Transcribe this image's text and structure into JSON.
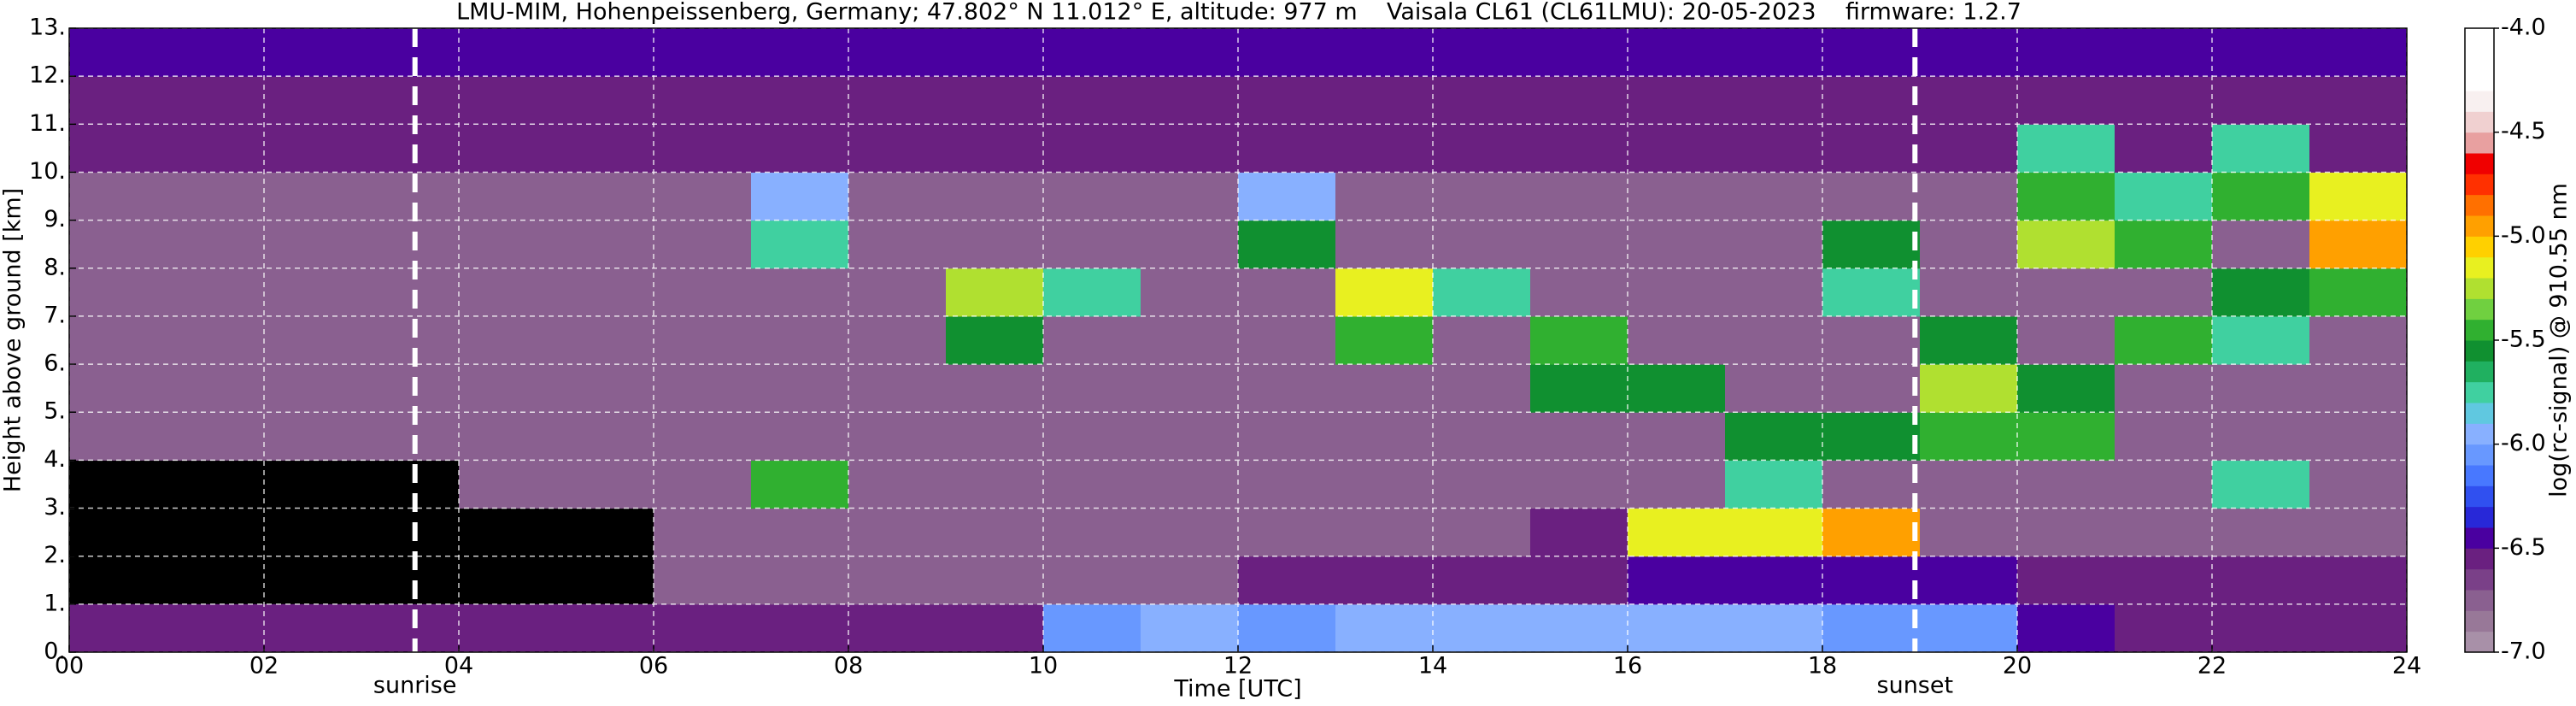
{
  "chart_data": {
    "type": "heatmap",
    "title": "LMU-MIM, Hohenpeissenberg, Germany; 47.802° N 11.012° E, altitude: 977 m    Vaisala CL61 (CL61LMU): 20-05-2023    firmware: 1.2.7",
    "x_label": "Time [UTC]",
    "y_label": "Height above ground [km]",
    "colorbar_label": "log(rc-signal) @ 910.55 nm",
    "x_edges": [
      0,
      1,
      2,
      3,
      4,
      5,
      6,
      7,
      8,
      9,
      10,
      11,
      12,
      13,
      14,
      15,
      16,
      17,
      18,
      19,
      20,
      21,
      22,
      23,
      24
    ],
    "y_edges": [
      0,
      1,
      2,
      3,
      4,
      5,
      6,
      7,
      8,
      9,
      10,
      11,
      12,
      13
    ],
    "values": [
      [
        -6.6,
        -6.6,
        -6.6,
        -6.6,
        -6.6,
        -6.6,
        -6.6,
        -6.6,
        -6.6,
        -6.6,
        -6.1,
        -6.0,
        -6.1,
        -6.0,
        -6.0,
        -6.0,
        -6.0,
        -6.0,
        -6.1,
        -6.1,
        -6.5,
        -6.6,
        -6.6,
        -6.6
      ],
      [
        null,
        null,
        null,
        null,
        null,
        null,
        -6.8,
        -6.8,
        -6.8,
        -6.8,
        -6.7,
        -6.7,
        -6.6,
        -6.6,
        -6.6,
        -6.6,
        -6.5,
        -6.5,
        -6.5,
        -6.5,
        -6.6,
        -6.6,
        -6.6,
        -6.6
      ],
      [
        null,
        null,
        null,
        null,
        null,
        null,
        -6.8,
        -6.8,
        -6.8,
        -6.8,
        -6.8,
        -6.8,
        -6.8,
        -6.8,
        -6.8,
        -6.6,
        -5.2,
        -5.2,
        -5.0,
        -6.7,
        -6.7,
        -6.7,
        -6.7,
        -6.7
      ],
      [
        null,
        null,
        null,
        null,
        -6.8,
        -6.8,
        -6.8,
        -5.5,
        -6.8,
        -6.8,
        -6.8,
        -6.8,
        -6.8,
        -6.8,
        -6.8,
        -6.8,
        -6.8,
        -5.8,
        -6.8,
        -6.8,
        -6.8,
        -6.8,
        -5.8,
        -6.8
      ],
      [
        -6.8,
        -6.8,
        -6.8,
        -6.8,
        -6.8,
        -6.8,
        -6.8,
        -6.8,
        -6.8,
        -6.8,
        -6.8,
        -6.8,
        -6.8,
        -6.8,
        -6.8,
        -6.8,
        -6.8,
        -5.6,
        -5.6,
        -5.5,
        -5.5,
        -6.8,
        -6.8,
        -6.8
      ],
      [
        -6.8,
        -6.8,
        -6.8,
        -6.8,
        -6.8,
        -6.8,
        -6.8,
        -6.8,
        -6.8,
        -6.8,
        -6.8,
        -6.8,
        -6.8,
        -6.8,
        -6.8,
        -5.6,
        -5.6,
        -6.8,
        -6.8,
        -5.3,
        -5.6,
        -6.8,
        -6.8,
        -6.8
      ],
      [
        -6.8,
        -6.8,
        -6.8,
        -6.8,
        -6.8,
        -6.8,
        -6.8,
        -6.8,
        -6.8,
        -5.6,
        -6.8,
        -6.8,
        -6.8,
        -5.4,
        -6.8,
        -5.5,
        -6.8,
        -6.8,
        -6.8,
        -5.6,
        -6.8,
        -5.5,
        -5.8,
        -6.8
      ],
      [
        -6.8,
        -6.8,
        -6.8,
        -6.8,
        -6.8,
        -6.8,
        -6.8,
        -6.8,
        -6.8,
        -5.3,
        -5.8,
        -6.8,
        -6.8,
        -5.2,
        -5.7,
        -6.8,
        -6.8,
        -6.8,
        -5.8,
        -6.8,
        -6.8,
        -6.8,
        -5.6,
        -5.5
      ],
      [
        -6.7,
        -6.7,
        -6.7,
        -6.7,
        -6.7,
        -6.7,
        -6.7,
        -5.7,
        -6.7,
        -6.7,
        -6.7,
        -6.7,
        -5.6,
        -6.7,
        -6.7,
        -6.7,
        -6.7,
        -6.7,
        -5.6,
        -6.7,
        -5.3,
        -5.4,
        -6.7,
        -5.0
      ],
      [
        -6.7,
        -6.7,
        -6.7,
        -6.7,
        -6.7,
        -6.7,
        -6.7,
        -6.0,
        -6.7,
        -6.7,
        -6.7,
        -6.7,
        -6.0,
        -6.7,
        -6.7,
        -6.7,
        -6.7,
        -6.7,
        -6.7,
        -6.7,
        -5.5,
        -5.8,
        -5.5,
        -5.2
      ],
      [
        -6.6,
        -6.6,
        -6.6,
        -6.6,
        -6.6,
        -6.6,
        -6.6,
        -6.6,
        -6.6,
        -6.6,
        -6.6,
        -6.6,
        -6.6,
        -6.6,
        -6.6,
        -6.6,
        -6.6,
        -6.6,
        -6.6,
        -6.6,
        -5.8,
        -6.6,
        -5.8,
        -6.6
      ],
      [
        -6.6,
        -6.6,
        -6.6,
        -6.6,
        -6.6,
        -6.6,
        -6.6,
        -6.6,
        -6.6,
        -6.6,
        -6.6,
        -6.6,
        -6.6,
        -6.6,
        -6.6,
        -6.6,
        -6.6,
        -6.6,
        -6.6,
        -6.6,
        -6.6,
        -6.6,
        -6.6,
        -6.6
      ],
      [
        -6.5,
        -6.5,
        -6.5,
        -6.5,
        -6.5,
        -6.5,
        -6.5,
        -6.5,
        -6.5,
        -6.5,
        -6.5,
        -6.5,
        -6.5,
        -6.5,
        -6.5,
        -6.5,
        -6.5,
        -6.5,
        -6.5,
        -6.5,
        -6.5,
        -6.5,
        -6.5,
        -6.5
      ]
    ],
    "xlim": [
      0,
      24
    ],
    "ylim": [
      0,
      13
    ],
    "clim": [
      -7,
      -4
    ],
    "xticks": [
      {
        "value": 0,
        "label": "00"
      },
      {
        "value": 2,
        "label": "02"
      },
      {
        "value": 4,
        "label": "04"
      },
      {
        "value": 6,
        "label": "06"
      },
      {
        "value": 8,
        "label": "08"
      },
      {
        "value": 10,
        "label": "10"
      },
      {
        "value": 12,
        "label": "12"
      },
      {
        "value": 14,
        "label": "14"
      },
      {
        "value": 16,
        "label": "16"
      },
      {
        "value": 18,
        "label": "18"
      },
      {
        "value": 20,
        "label": "20"
      },
      {
        "value": 22,
        "label": "22"
      },
      {
        "value": 24,
        "label": "24"
      }
    ],
    "yticks": [
      {
        "value": 0,
        "label": "0."
      },
      {
        "value": 1,
        "label": "1."
      },
      {
        "value": 2,
        "label": "2."
      },
      {
        "value": 3,
        "label": "3."
      },
      {
        "value": 4,
        "label": "4."
      },
      {
        "value": 5,
        "label": "5."
      },
      {
        "value": 6,
        "label": "6."
      },
      {
        "value": 7,
        "label": "7."
      },
      {
        "value": 8,
        "label": "8."
      },
      {
        "value": 9,
        "label": "9."
      },
      {
        "value": 10,
        "label": "10."
      },
      {
        "value": 11,
        "label": "11."
      },
      {
        "value": 12,
        "label": "12."
      },
      {
        "value": 13,
        "label": "13."
      }
    ],
    "cticks": [
      {
        "value": -7,
        "label": "-7.0"
      },
      -6.5,
      {
        "value": -6,
        "label": "-6.0"
      },
      -5.5,
      {
        "value": -5,
        "label": "-5.0"
      },
      -4.5,
      {
        "value": -4,
        "label": "-4.0"
      }
    ],
    "colors": [
      "#a890a8",
      "#987898",
      "#8a6090",
      "#7a4088",
      "#6a2080",
      "#4a00a0",
      "#2828d8",
      "#3050f0",
      "#4878ff",
      "#6898ff",
      "#88b0ff",
      "#60c8e0",
      "#40d0a0",
      "#20b060",
      "#109030",
      "#30b030",
      "#70d040",
      "#b0e030",
      "#e8f020",
      "#ffd000",
      "#ffa000",
      "#ff7000",
      "#ff3000",
      "#f00000",
      "#e8a0a0",
      "#f0d0d0",
      "#f8f0f0",
      "#ffffff",
      "#ffffff",
      "#ffffff"
    ],
    "grid": true,
    "annotations": [
      {
        "text": "sunrise",
        "x": 3.55
      },
      {
        "text": "sunset",
        "x": 18.95
      }
    ]
  }
}
